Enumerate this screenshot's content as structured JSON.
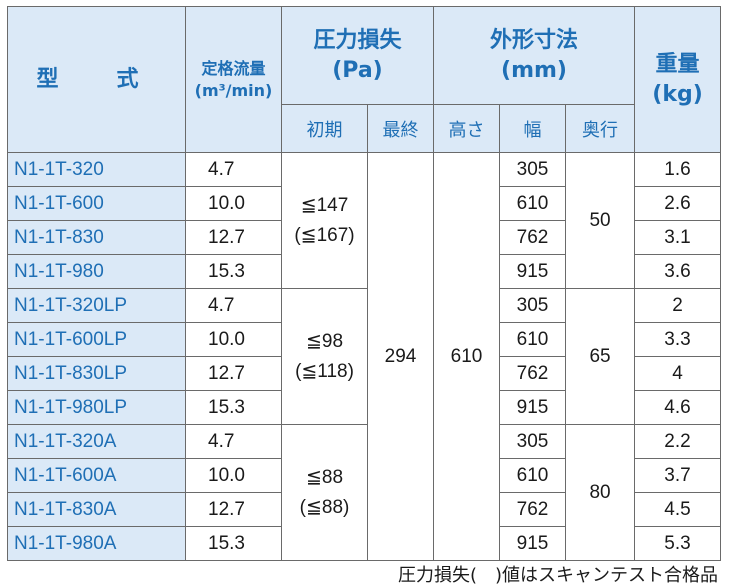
{
  "headers": {
    "model": "型　式",
    "flow": "定格流量",
    "flow_unit": "(m³/min)",
    "pressure": "圧力損失",
    "pressure_unit": "(Pa)",
    "pressure_initial": "初期",
    "pressure_final": "最終",
    "dimensions": "外形寸法",
    "dimensions_unit": "(mm)",
    "height": "高さ",
    "width": "幅",
    "depth": "奥行",
    "weight": "重量",
    "weight_unit": "(kg)"
  },
  "rows": [
    {
      "model": "N1-1T-320",
      "flow": "4.7",
      "width": "305",
      "weight": "1.6"
    },
    {
      "model": "N1-1T-600",
      "flow": "10.0",
      "width": "610",
      "weight": "2.6"
    },
    {
      "model": "N1-1T-830",
      "flow": "12.7",
      "width": "762",
      "weight": "3.1"
    },
    {
      "model": "N1-1T-980",
      "flow": "15.3",
      "width": "915",
      "weight": "3.6"
    },
    {
      "model": "N1-1T-320LP",
      "flow": "4.7",
      "width": "305",
      "weight": "2"
    },
    {
      "model": "N1-1T-600LP",
      "flow": "10.0",
      "width": "610",
      "weight": "3.3"
    },
    {
      "model": "N1-1T-830LP",
      "flow": "12.7",
      "width": "762",
      "weight": "4"
    },
    {
      "model": "N1-1T-980LP",
      "flow": "15.3",
      "width": "915",
      "weight": "4.6"
    },
    {
      "model": "N1-1T-320A",
      "flow": "4.7",
      "width": "305",
      "weight": "2.2"
    },
    {
      "model": "N1-1T-600A",
      "flow": "10.0",
      "width": "610",
      "weight": "3.7"
    },
    {
      "model": "N1-1T-830A",
      "flow": "12.7",
      "width": "762",
      "weight": "4.5"
    },
    {
      "model": "N1-1T-980A",
      "flow": "15.3",
      "width": "915",
      "weight": "5.3"
    }
  ],
  "groups": [
    {
      "initial_line1": "≦147",
      "initial_line2": "(≦167)",
      "depth": "50"
    },
    {
      "initial_line1": "≦98",
      "initial_line2": "(≦118)",
      "depth": "65"
    },
    {
      "initial_line1": "≦88",
      "initial_line2": "(≦88)",
      "depth": "80"
    }
  ],
  "shared": {
    "final_pressure": "294",
    "height": "610"
  },
  "note": "圧力損失(　)値はスキャンテスト合格品"
}
